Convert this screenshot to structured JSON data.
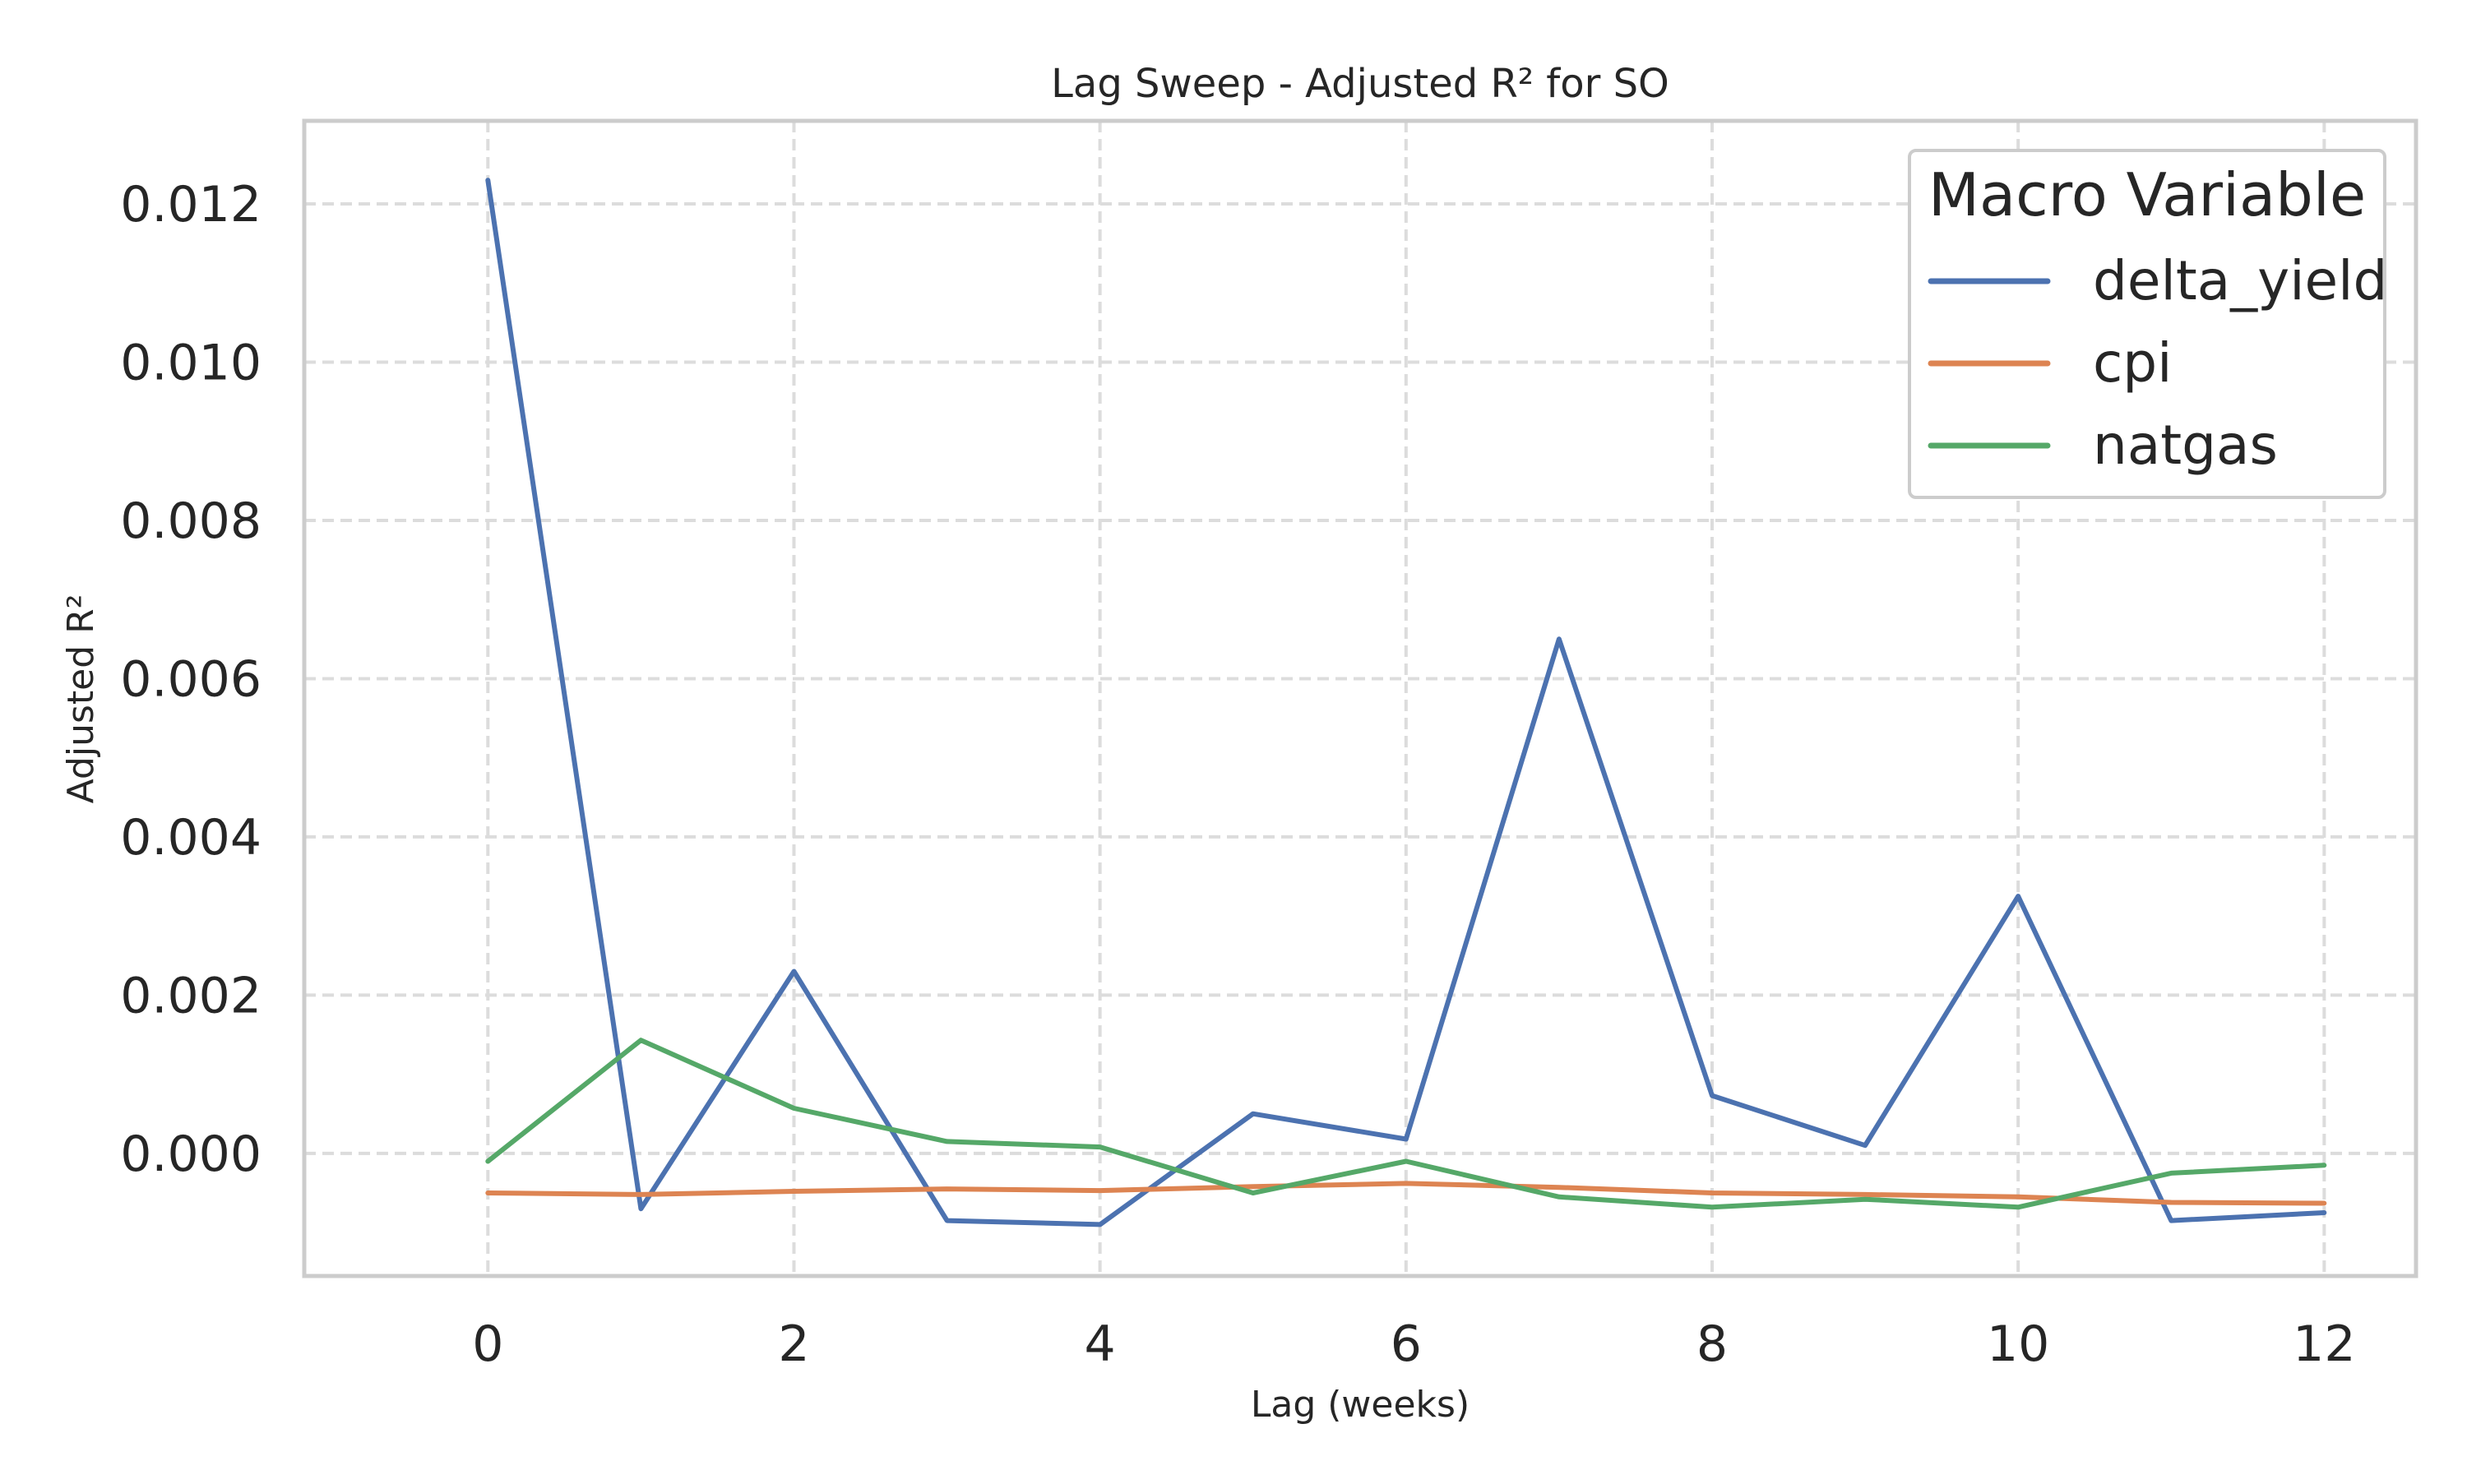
{
  "chart_data": {
    "type": "line",
    "title": "Lag Sweep - Adjusted R² for SO",
    "xlabel": "Lag (weeks)",
    "ylabel": "Adjusted R²",
    "x": [
      0,
      1,
      2,
      3,
      4,
      5,
      6,
      7,
      8,
      9,
      10,
      11,
      12
    ],
    "xlim": [
      -1.2,
      12.6
    ],
    "ylim": [
      -0.00155,
      0.01305
    ],
    "xticks": [
      0,
      2,
      4,
      6,
      8,
      10,
      12
    ],
    "xtick_labels": [
      "0",
      "2",
      "4",
      "6",
      "8",
      "10",
      "12"
    ],
    "yticks": [
      0.0,
      0.002,
      0.004,
      0.006,
      0.008,
      0.01,
      0.012
    ],
    "ytick_labels": [
      "0.000",
      "0.002",
      "0.004",
      "0.006",
      "0.008",
      "0.010",
      "0.012"
    ],
    "grid": true,
    "legend": {
      "title": "Macro Variable",
      "placement": "top-right"
    },
    "series": [
      {
        "name": "delta_yield",
        "color": "#4c72b0",
        "values": [
          0.0123,
          -0.0007,
          0.0023,
          -0.00085,
          -0.0009,
          0.0005,
          0.00018,
          0.0065,
          0.00073,
          0.0001,
          0.00325,
          -0.00085,
          -0.00075
        ]
      },
      {
        "name": "cpi",
        "color": "#dd8452",
        "values": [
          -0.0005,
          -0.00052,
          -0.00048,
          -0.00045,
          -0.00047,
          -0.00042,
          -0.00038,
          -0.00043,
          -0.0005,
          -0.00052,
          -0.00055,
          -0.00062,
          -0.00063
        ]
      },
      {
        "name": "natgas",
        "color": "#55a868",
        "values": [
          -0.0001,
          0.00143,
          0.00057,
          0.00015,
          8e-05,
          -0.0005,
          -0.0001,
          -0.00055,
          -0.00068,
          -0.00058,
          -0.00068,
          -0.00025,
          -0.00015
        ]
      }
    ]
  }
}
